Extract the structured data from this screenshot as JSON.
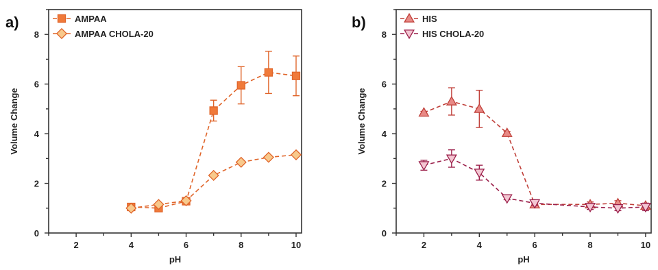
{
  "chart_data": [
    {
      "type": "line",
      "panel_label": "a)",
      "xlabel": "pH",
      "ylabel": "Volume Change",
      "xlim": [
        1,
        10.2
      ],
      "ylim": [
        0,
        9
      ],
      "xticks": [
        2,
        4,
        6,
        8,
        10
      ],
      "yticks": [
        0,
        2,
        4,
        6,
        8
      ],
      "legend_position": "top-left",
      "series": [
        {
          "name": "AMPAA",
          "marker": "square",
          "color": "#f07a3a",
          "stroke": "#e0652a",
          "x": [
            4,
            5,
            6,
            7,
            8,
            9,
            10
          ],
          "y": [
            1.05,
            1.0,
            1.28,
            4.93,
            5.95,
            6.47,
            6.33
          ],
          "err": [
            0.05,
            0.05,
            0.05,
            0.42,
            0.75,
            0.85,
            0.8
          ]
        },
        {
          "name": "AMPAA CHOLA-20",
          "marker": "diamond",
          "color": "#f8c98c",
          "stroke": "#e0652a",
          "x": [
            4,
            5,
            6,
            7,
            8,
            9,
            10
          ],
          "y": [
            1.0,
            1.15,
            1.3,
            2.32,
            2.85,
            3.05,
            3.15
          ],
          "err": [
            0.04,
            0.04,
            0.04,
            0.05,
            0.06,
            0.06,
            0.06
          ]
        }
      ]
    },
    {
      "type": "line",
      "panel_label": "b)",
      "xlabel": "pH",
      "ylabel": "Volume Change",
      "xlim": [
        1,
        10.2
      ],
      "ylim": [
        0,
        9
      ],
      "xticks": [
        2,
        4,
        6,
        8,
        10
      ],
      "yticks": [
        0,
        2,
        4,
        6,
        8
      ],
      "legend_position": "top-left",
      "series": [
        {
          "name": "HIS",
          "marker": "triangle-up",
          "color": "#e88a86",
          "stroke": "#c0403a",
          "x": [
            2,
            3,
            4,
            5,
            6,
            8,
            9,
            10
          ],
          "y": [
            4.85,
            5.3,
            5.0,
            4.03,
            1.15,
            1.15,
            1.2,
            1.1
          ],
          "err": [
            0.05,
            0.55,
            0.75,
            0.06,
            0.05,
            0.1,
            0.1,
            0.1
          ]
        },
        {
          "name": "HIS CHOLA-20",
          "marker": "triangle-down",
          "color": "#f3c6d2",
          "stroke": "#9b1f4a",
          "x": [
            2,
            3,
            4,
            5,
            6,
            8,
            9,
            10
          ],
          "y": [
            2.73,
            3.0,
            2.43,
            1.4,
            1.2,
            1.05,
            1.0,
            1.05
          ],
          "err": [
            0.2,
            0.35,
            0.3,
            0.06,
            0.08,
            0.1,
            0.1,
            0.15
          ]
        }
      ]
    }
  ]
}
